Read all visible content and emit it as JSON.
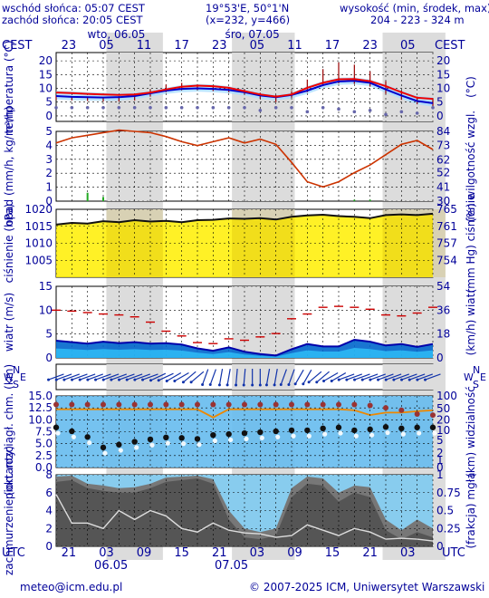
{
  "header": {
    "sunrise": "wschód słońca: 05:07 CEST",
    "sunset": "zachód słońca: 20:05 CEST",
    "coords": "19°53'E, 50°1'N",
    "grid": "(x=232,  y=466)",
    "height_title": "wysokość (min, środek, max)",
    "height_values": "204 - 223 - 324 m"
  },
  "time_axis": {
    "tz_label": "CEST",
    "day_labels": [
      "wto, 06.05",
      "śro, 07.05"
    ],
    "top_hours": [
      "23",
      "05",
      "11",
      "17",
      "23",
      "05",
      "11",
      "17",
      "23",
      "05"
    ],
    "bottom_tz_label": "UTC",
    "bottom_hours": [
      "21",
      "03",
      "09",
      "15",
      "21",
      "03",
      "09",
      "15",
      "21",
      "03"
    ],
    "bottom_dates": [
      "06.05",
      "07.05"
    ]
  },
  "footer": {
    "email": "meteo@icm.edu.pl",
    "copyright": "© 2007-2025 ICM, Uniwersytet Warszawski"
  },
  "colors": {
    "label": "#000099",
    "night": "#d8d8d8",
    "day": "#ffffff",
    "temp_line": "#ee0000",
    "dew_line": "#0000cc",
    "temp_bars": "#990000",
    "humidity": "#cc3300",
    "pressure_line": "#111111",
    "pressure_fill": "#ffee00",
    "wind_fill": "#0066cc",
    "wind_line": "#0000aa",
    "gust": "#cc0000",
    "cloud_gray": "#555555",
    "sky": "#66bbee"
  },
  "chart_data": [
    {
      "type": "line",
      "name": "temperatura",
      "ylabel": "temperatura (°C)",
      "ylabel_right": "(°C)",
      "ylim": [
        -2,
        23
      ],
      "yticks": [
        0,
        5,
        10,
        15,
        20
      ],
      "grid": true,
      "x": [
        0,
        3,
        6,
        9,
        12,
        15,
        18,
        21,
        24,
        27,
        30,
        33,
        36,
        39,
        42,
        45,
        48,
        51,
        54,
        57,
        60,
        63,
        66,
        69,
        72
      ],
      "series": [
        {
          "values": [
            8.5,
            8.3,
            8.0,
            7.8,
            7.6,
            7.8,
            8.5,
            9.6,
            10.6,
            11.0,
            10.8,
            10.2,
            9.0,
            7.8,
            7.0,
            7.8,
            10.2,
            12.0,
            13.3,
            13.4,
            12.6,
            10.8,
            8.6,
            6.6,
            6.2
          ]
        },
        {
          "values": [
            7.2,
            6.9,
            6.8,
            6.7,
            6.8,
            7.2,
            8.2,
            9.2,
            9.8,
            10.0,
            9.8,
            9.4,
            8.6,
            7.4,
            6.8,
            7.6,
            9.2,
            11.2,
            12.5,
            12.7,
            12.0,
            9.6,
            7.4,
            5.4,
            4.6
          ]
        }
      ],
      "bars_max": [
        7.5,
        7.2,
        7.0,
        6.9,
        7.2,
        8.2,
        9.6,
        11.4,
        12.0,
        11.4,
        11.0,
        10.4,
        9.6,
        8.4,
        7.6,
        9.0,
        13.2,
        17.0,
        19.4,
        18.6,
        16.2,
        12.6,
        9.2,
        7.0,
        6.4
      ],
      "bars_min": [
        5.8,
        5.6,
        5.4,
        5.2,
        5.2,
        5.6,
        7.0,
        8.6,
        9.4,
        9.4,
        9.0,
        8.6,
        7.8,
        6.2,
        5.0,
        6.6,
        8.6,
        10.8,
        11.8,
        11.6,
        10.6,
        8.0,
        5.8,
        4.2,
        3.6
      ],
      "dots": [
        3.0,
        3.0,
        3.0,
        3.0,
        3.0,
        3.0,
        3.0,
        3.0,
        3.0,
        3.0,
        3.0,
        3.0,
        3.0,
        2.0,
        3.0,
        3.0,
        1.5,
        3.0,
        2.5,
        1.5,
        2.0,
        0.5,
        1.5,
        1.0,
        3.0
      ]
    },
    {
      "type": "line",
      "name": "opad i wilgotność",
      "ylabel": "opad (mm/h, kg/m²/h)",
      "ylabel_right": "(%) wilgotność wzgl.",
      "ylim": [
        0,
        5
      ],
      "yticks": [
        0,
        1,
        2,
        3,
        4,
        5
      ],
      "y2lim": [
        30,
        84
      ],
      "y2ticks": [
        30,
        41,
        52,
        62,
        73,
        84
      ],
      "grid": true,
      "x": [
        0,
        3,
        6,
        9,
        12,
        15,
        18,
        21,
        24,
        27,
        30,
        33,
        36,
        39,
        42,
        45,
        48,
        51,
        54,
        57,
        60,
        63,
        66,
        69,
        72
      ],
      "humidity": [
        75,
        79,
        81,
        83,
        85,
        84,
        83,
        80,
        76,
        73,
        76,
        79,
        75,
        78,
        74,
        60,
        45,
        41,
        45,
        52,
        58,
        66,
        74,
        77,
        70
      ],
      "precip": [
        0,
        0,
        0.6,
        0.3,
        0,
        0,
        0,
        0,
        0,
        0,
        0,
        0,
        0,
        0,
        0,
        0,
        0,
        0,
        0,
        0.1,
        0.1,
        0,
        0,
        0,
        0
      ]
    },
    {
      "type": "area",
      "name": "ciśnienie",
      "ylabel": "ciśnienie (hPa)",
      "ylabel_right": "(mm Hg) ciśnienie",
      "ylim": [
        1000,
        1020
      ],
      "yticks": [
        1005,
        1010,
        1015,
        1020
      ],
      "y2ticks": [
        754,
        757,
        761,
        765
      ],
      "grid": true,
      "x": [
        0,
        3,
        6,
        9,
        12,
        15,
        18,
        21,
        24,
        27,
        30,
        33,
        36,
        39,
        42,
        45,
        48,
        51,
        54,
        57,
        60,
        63,
        66,
        69,
        72
      ],
      "values": [
        1015.5,
        1016.0,
        1015.8,
        1016.5,
        1016.2,
        1016.8,
        1016.4,
        1016.6,
        1016.2,
        1016.8,
        1016.9,
        1017.3,
        1017.2,
        1017.4,
        1017.0,
        1017.8,
        1018.2,
        1018.4,
        1018.0,
        1017.8,
        1017.4,
        1018.3,
        1018.5,
        1018.3,
        1018.7
      ]
    },
    {
      "type": "area",
      "name": "wiatr",
      "ylabel": "wiatr (m/s)",
      "ylabel_right": "(km/h) wiatr",
      "ylim": [
        0,
        15
      ],
      "yticks": [
        0,
        5,
        10,
        15
      ],
      "y2ticks": [
        0,
        18,
        36,
        54
      ],
      "grid": true,
      "x": [
        0,
        3,
        6,
        9,
        12,
        15,
        18,
        21,
        24,
        27,
        30,
        33,
        36,
        39,
        42,
        45,
        48,
        51,
        54,
        57,
        60,
        63,
        66,
        69,
        72
      ],
      "speed": [
        3.6,
        3.3,
        3.0,
        3.4,
        3.1,
        3.3,
        3.0,
        3.1,
        2.8,
        2.0,
        1.5,
        2.2,
        1.3,
        0.8,
        0.5,
        1.8,
        2.9,
        2.4,
        2.4,
        3.8,
        3.4,
        2.6,
        2.9,
        2.3,
        2.9
      ],
      "gusts": [
        10.0,
        9.8,
        9.5,
        9.2,
        9.0,
        8.6,
        7.5,
        5.6,
        4.6,
        3.2,
        3.0,
        4.0,
        3.7,
        4.4,
        5.1,
        8.2,
        9.2,
        10.6,
        10.8,
        10.6,
        10.2,
        9.0,
        8.8,
        9.4,
        10.6
      ]
    },
    {
      "type": "scatter",
      "name": "kierunek wiatru",
      "direction_labels": [
        "N",
        "S",
        "W",
        "E"
      ],
      "x": [
        0,
        3,
        6,
        9,
        12,
        15,
        18,
        21,
        24,
        27,
        30,
        33,
        36,
        39,
        42,
        45,
        48,
        51,
        54,
        57,
        60,
        63,
        66,
        69,
        72
      ],
      "bearing_deg": [
        250,
        250,
        250,
        250,
        250,
        250,
        250,
        245,
        240,
        230,
        200,
        190,
        185,
        180,
        190,
        200,
        210,
        230,
        240,
        250,
        250,
        250,
        250,
        250,
        250
      ]
    },
    {
      "type": "scatter",
      "name": "widzialność",
      "ylabel": "pion. rozciągł. chm. (km)",
      "ylabel_right": "(km) widzialność",
      "ylim": [
        0,
        15
      ],
      "yticks": [
        0,
        2.5,
        5.0,
        7.5,
        10.0,
        12.5,
        15.0
      ],
      "y2ticks": [
        0,
        1,
        2,
        5,
        10,
        20,
        50,
        100
      ],
      "grid": true,
      "x": [
        0,
        3,
        6,
        9,
        12,
        15,
        18,
        21,
        24,
        27,
        30,
        33,
        36,
        39,
        42,
        45,
        48,
        51,
        54,
        57,
        60,
        63,
        66,
        69,
        72
      ],
      "cloud_top": [
        13.2,
        13.2,
        13.2,
        13.2,
        13.2,
        13.2,
        13.2,
        13.2,
        13.2,
        13.2,
        13.2,
        13.2,
        13.2,
        13.2,
        13.2,
        13.2,
        13.2,
        13.2,
        13.2,
        13.2,
        13.0,
        12.5,
        12.0,
        11.2,
        11.0
      ],
      "cloud_base": [
        8.4,
        7.6,
        6.4,
        4.2,
        4.8,
        5.4,
        5.9,
        6.3,
        6.2,
        6.0,
        6.8,
        7.0,
        7.2,
        7.4,
        7.6,
        7.8,
        7.8,
        8.2,
        8.4,
        7.8,
        8.0,
        8.5,
        8.2,
        8.4,
        8.4
      ],
      "visibility": [
        12.2,
        12.2,
        12.2,
        12.2,
        12.2,
        12.2,
        12.2,
        12.2,
        12.2,
        12.2,
        10.5,
        12.2,
        12.2,
        12.2,
        12.2,
        12.2,
        12.2,
        12.2,
        12.2,
        12.0,
        11.0,
        11.5,
        11.5,
        11.8,
        12.0
      ]
    },
    {
      "type": "area",
      "name": "zachmurzenie",
      "ylabel": "zachmurzenie (oktanty)",
      "ylabel_right": "(frakcja) mgła",
      "ylim": [
        0,
        8
      ],
      "yticks": [
        0,
        2,
        4,
        6,
        8
      ],
      "y2ticks": [
        "0",
        "0.25",
        "0.5",
        "0.75",
        "1"
      ],
      "grid": true,
      "x": [
        0,
        3,
        6,
        9,
        12,
        15,
        18,
        21,
        24,
        27,
        30,
        33,
        36,
        39,
        42,
        45,
        48,
        51,
        54,
        57,
        60,
        63,
        66,
        69,
        72
      ],
      "total": [
        7.8,
        7.9,
        7.0,
        6.8,
        6.5,
        6.6,
        7.0,
        7.7,
        7.8,
        7.9,
        7.5,
        4.0,
        2.0,
        1.6,
        2.0,
        6.5,
        7.8,
        7.6,
        6.0,
        6.8,
        6.6,
        3.0,
        1.8,
        3.0,
        2.0
      ],
      "low": [
        7.2,
        7.4,
        6.5,
        6.2,
        6.0,
        6.0,
        6.5,
        7.2,
        7.4,
        7.6,
        7.0,
        3.0,
        1.0,
        0.8,
        1.2,
        5.5,
        7.0,
        6.8,
        5.0,
        6.0,
        5.5,
        1.8,
        0.8,
        1.6,
        1.0
      ],
      "fog_line": [
        5.8,
        2.6,
        2.6,
        2.0,
        4.0,
        3.0,
        4.0,
        3.4,
        2.0,
        1.6,
        2.6,
        1.8,
        1.5,
        1.4,
        1.0,
        1.2,
        2.4,
        1.8,
        1.2,
        2.0,
        1.6,
        0.8,
        0.9,
        0.8,
        0.6
      ]
    }
  ]
}
